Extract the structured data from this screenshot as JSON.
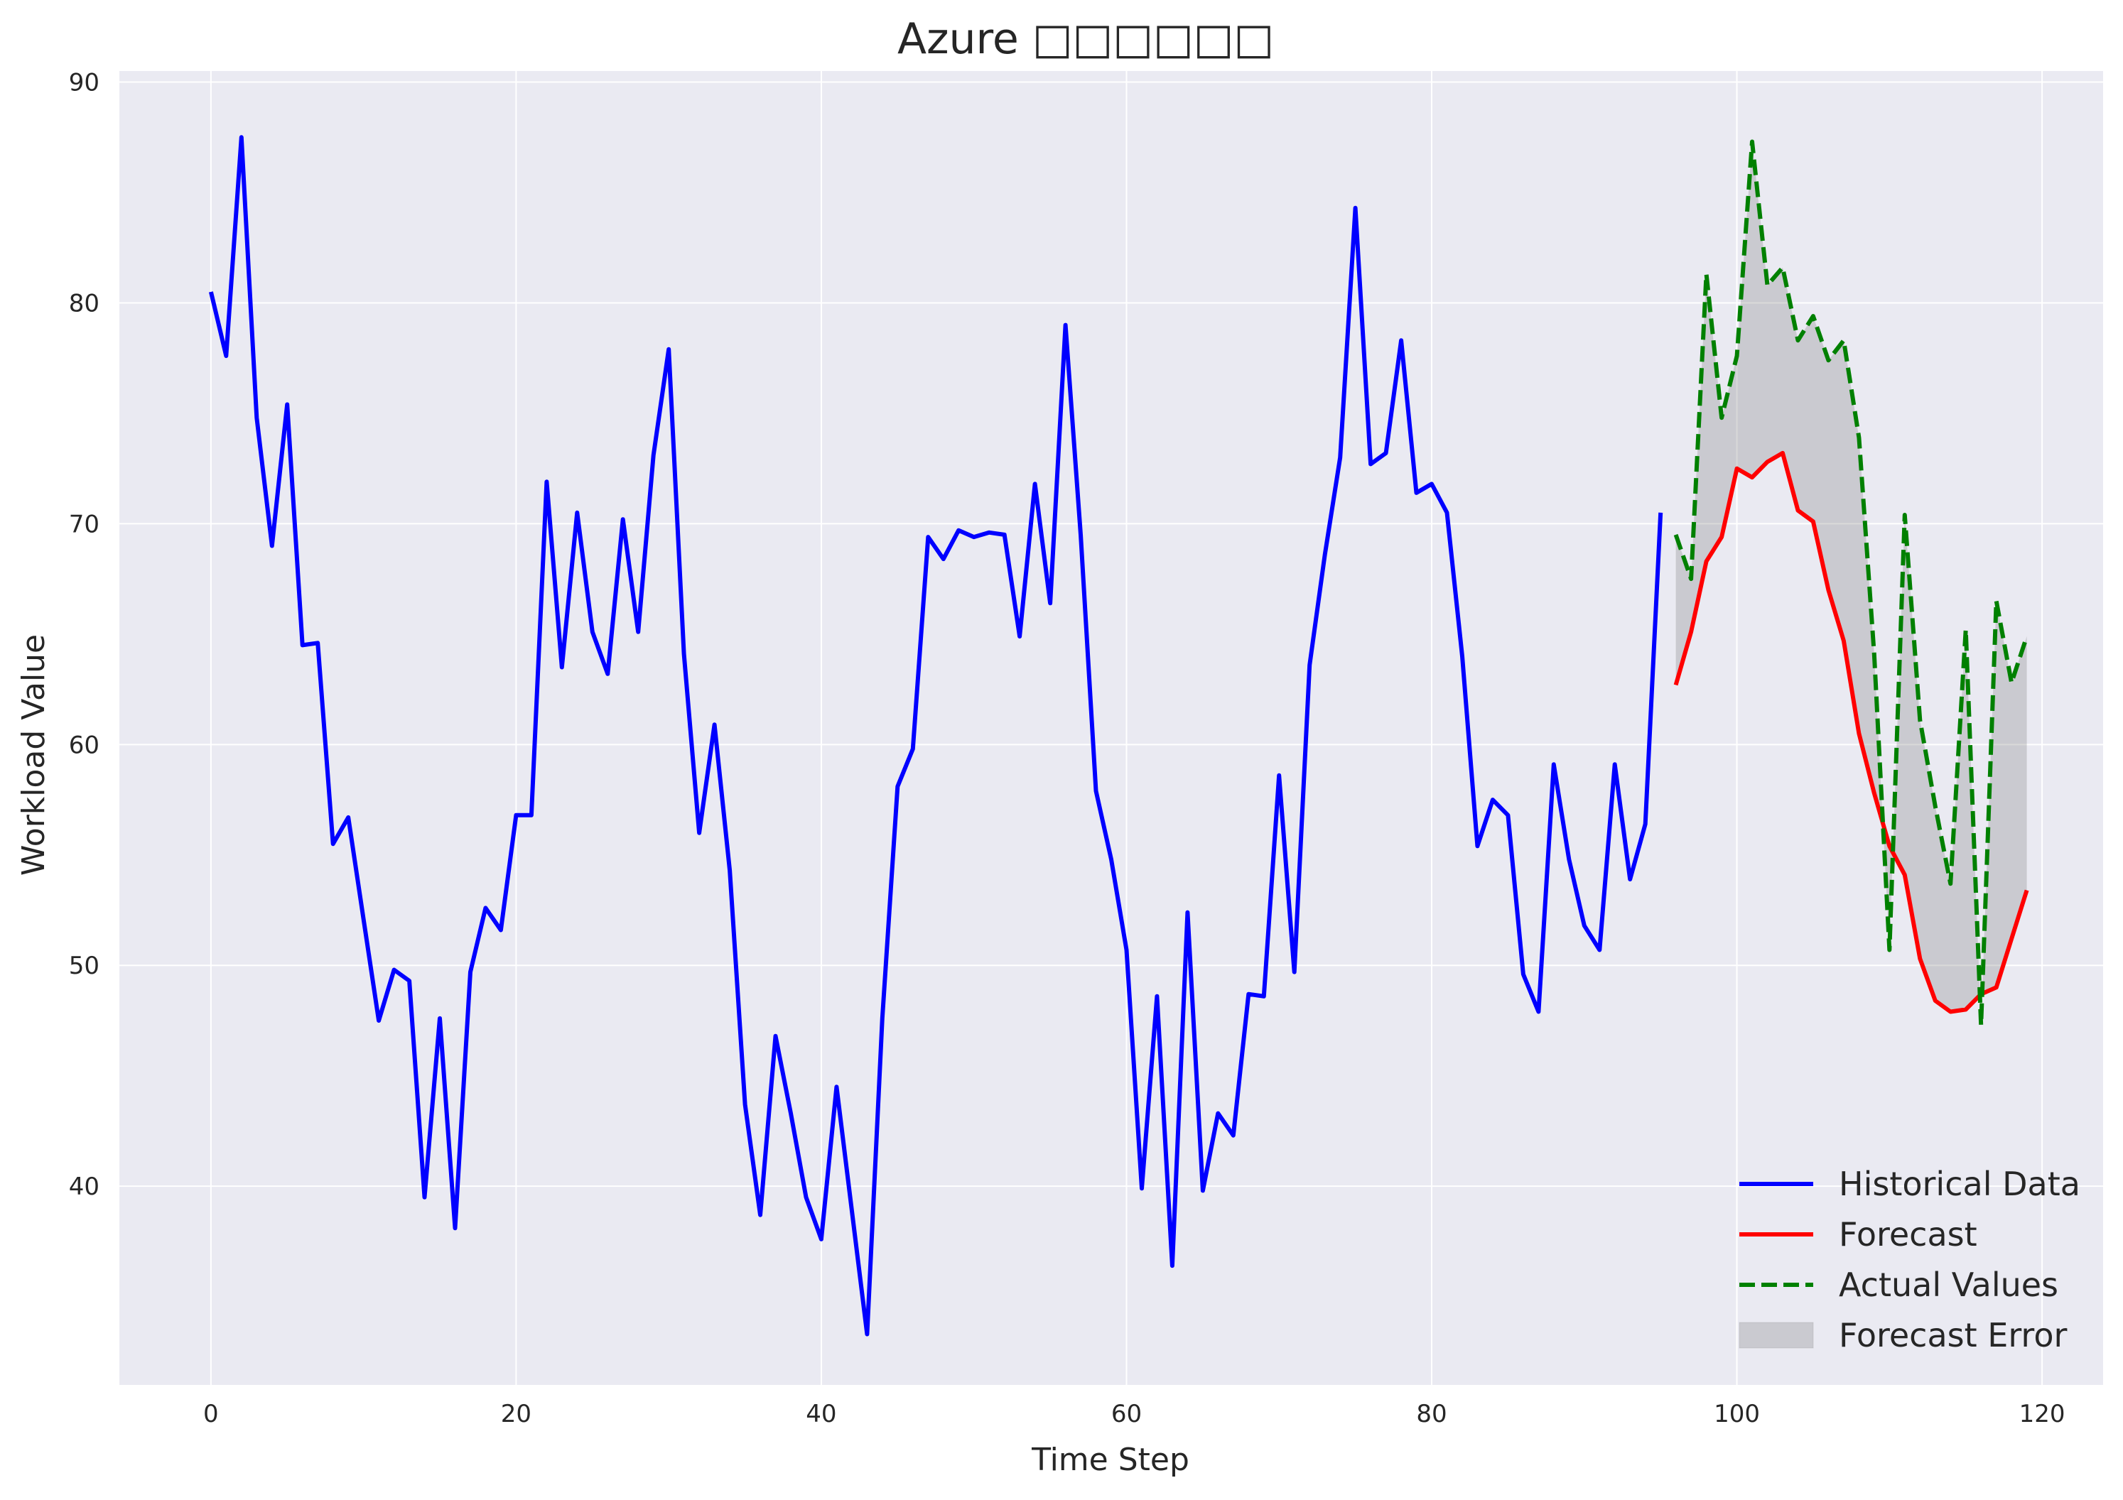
{
  "chart_data": {
    "type": "line",
    "title": "Azure □□□□□□",
    "xlabel": "Time Step",
    "ylabel": "Workload Value",
    "xlim": [
      -6,
      124
    ],
    "ylim": [
      31,
      90.5
    ],
    "xticks": [
      0,
      20,
      40,
      60,
      80,
      100,
      120
    ],
    "yticks": [
      40,
      50,
      60,
      70,
      80,
      90
    ],
    "grid": true,
    "legend_position": "lower-right",
    "series": [
      {
        "name": "Historical Data",
        "color": "#0000ff",
        "style": "solid",
        "x_start": 0,
        "values": [
          80.5,
          77.6,
          87.5,
          74.8,
          69.0,
          75.4,
          64.5,
          64.6,
          55.5,
          56.7,
          52.1,
          47.5,
          49.8,
          49.3,
          39.5,
          47.6,
          38.1,
          49.7,
          52.6,
          51.6,
          56.8,
          56.8,
          71.9,
          63.5,
          70.5,
          65.1,
          63.2,
          70.2,
          65.1,
          73.1,
          77.9,
          64.1,
          56.0,
          60.9,
          54.3,
          43.7,
          38.7,
          46.8,
          43.3,
          39.5,
          37.6,
          44.5,
          38.9,
          33.3,
          47.6,
          58.1,
          59.8,
          69.4,
          68.4,
          69.7,
          69.4,
          69.6,
          69.5,
          64.9,
          71.8,
          66.4,
          79.0,
          69.5,
          57.9,
          54.8,
          50.7,
          39.9,
          48.6,
          36.4,
          52.4,
          39.8,
          43.3,
          42.3,
          48.7,
          48.6,
          58.6,
          49.7,
          63.6,
          68.6,
          73.0,
          84.3,
          72.7,
          73.2,
          78.3,
          71.4,
          71.8,
          70.5,
          64.0,
          55.4,
          57.5,
          56.8,
          49.6,
          47.9,
          59.1,
          54.8,
          51.8,
          50.7,
          59.1,
          53.9,
          56.4,
          70.5
        ]
      },
      {
        "name": "Forecast",
        "color": "#ff0000",
        "style": "solid",
        "x_start": 96,
        "values": [
          62.7,
          65.1,
          68.3,
          69.4,
          72.5,
          72.1,
          72.8,
          73.2,
          70.6,
          70.1,
          67.0,
          64.7,
          60.5,
          57.8,
          55.4,
          54.1,
          50.3,
          48.4,
          47.9,
          48.0,
          48.7,
          49.0,
          51.2,
          53.4
        ]
      },
      {
        "name": "Actual Values",
        "color": "#008000",
        "style": "dashed",
        "x_start": 96,
        "values": [
          69.5,
          67.5,
          81.3,
          74.8,
          77.6,
          87.3,
          80.8,
          81.6,
          78.3,
          79.4,
          77.4,
          78.3,
          73.9,
          64.1,
          50.7,
          70.4,
          61.1,
          57.2,
          53.7,
          65.2,
          47.3,
          66.5,
          62.8,
          64.9
        ]
      }
    ],
    "fill_between": {
      "name": "Forecast Error",
      "color": "#808080",
      "between": [
        "Forecast",
        "Actual Values"
      ]
    }
  }
}
